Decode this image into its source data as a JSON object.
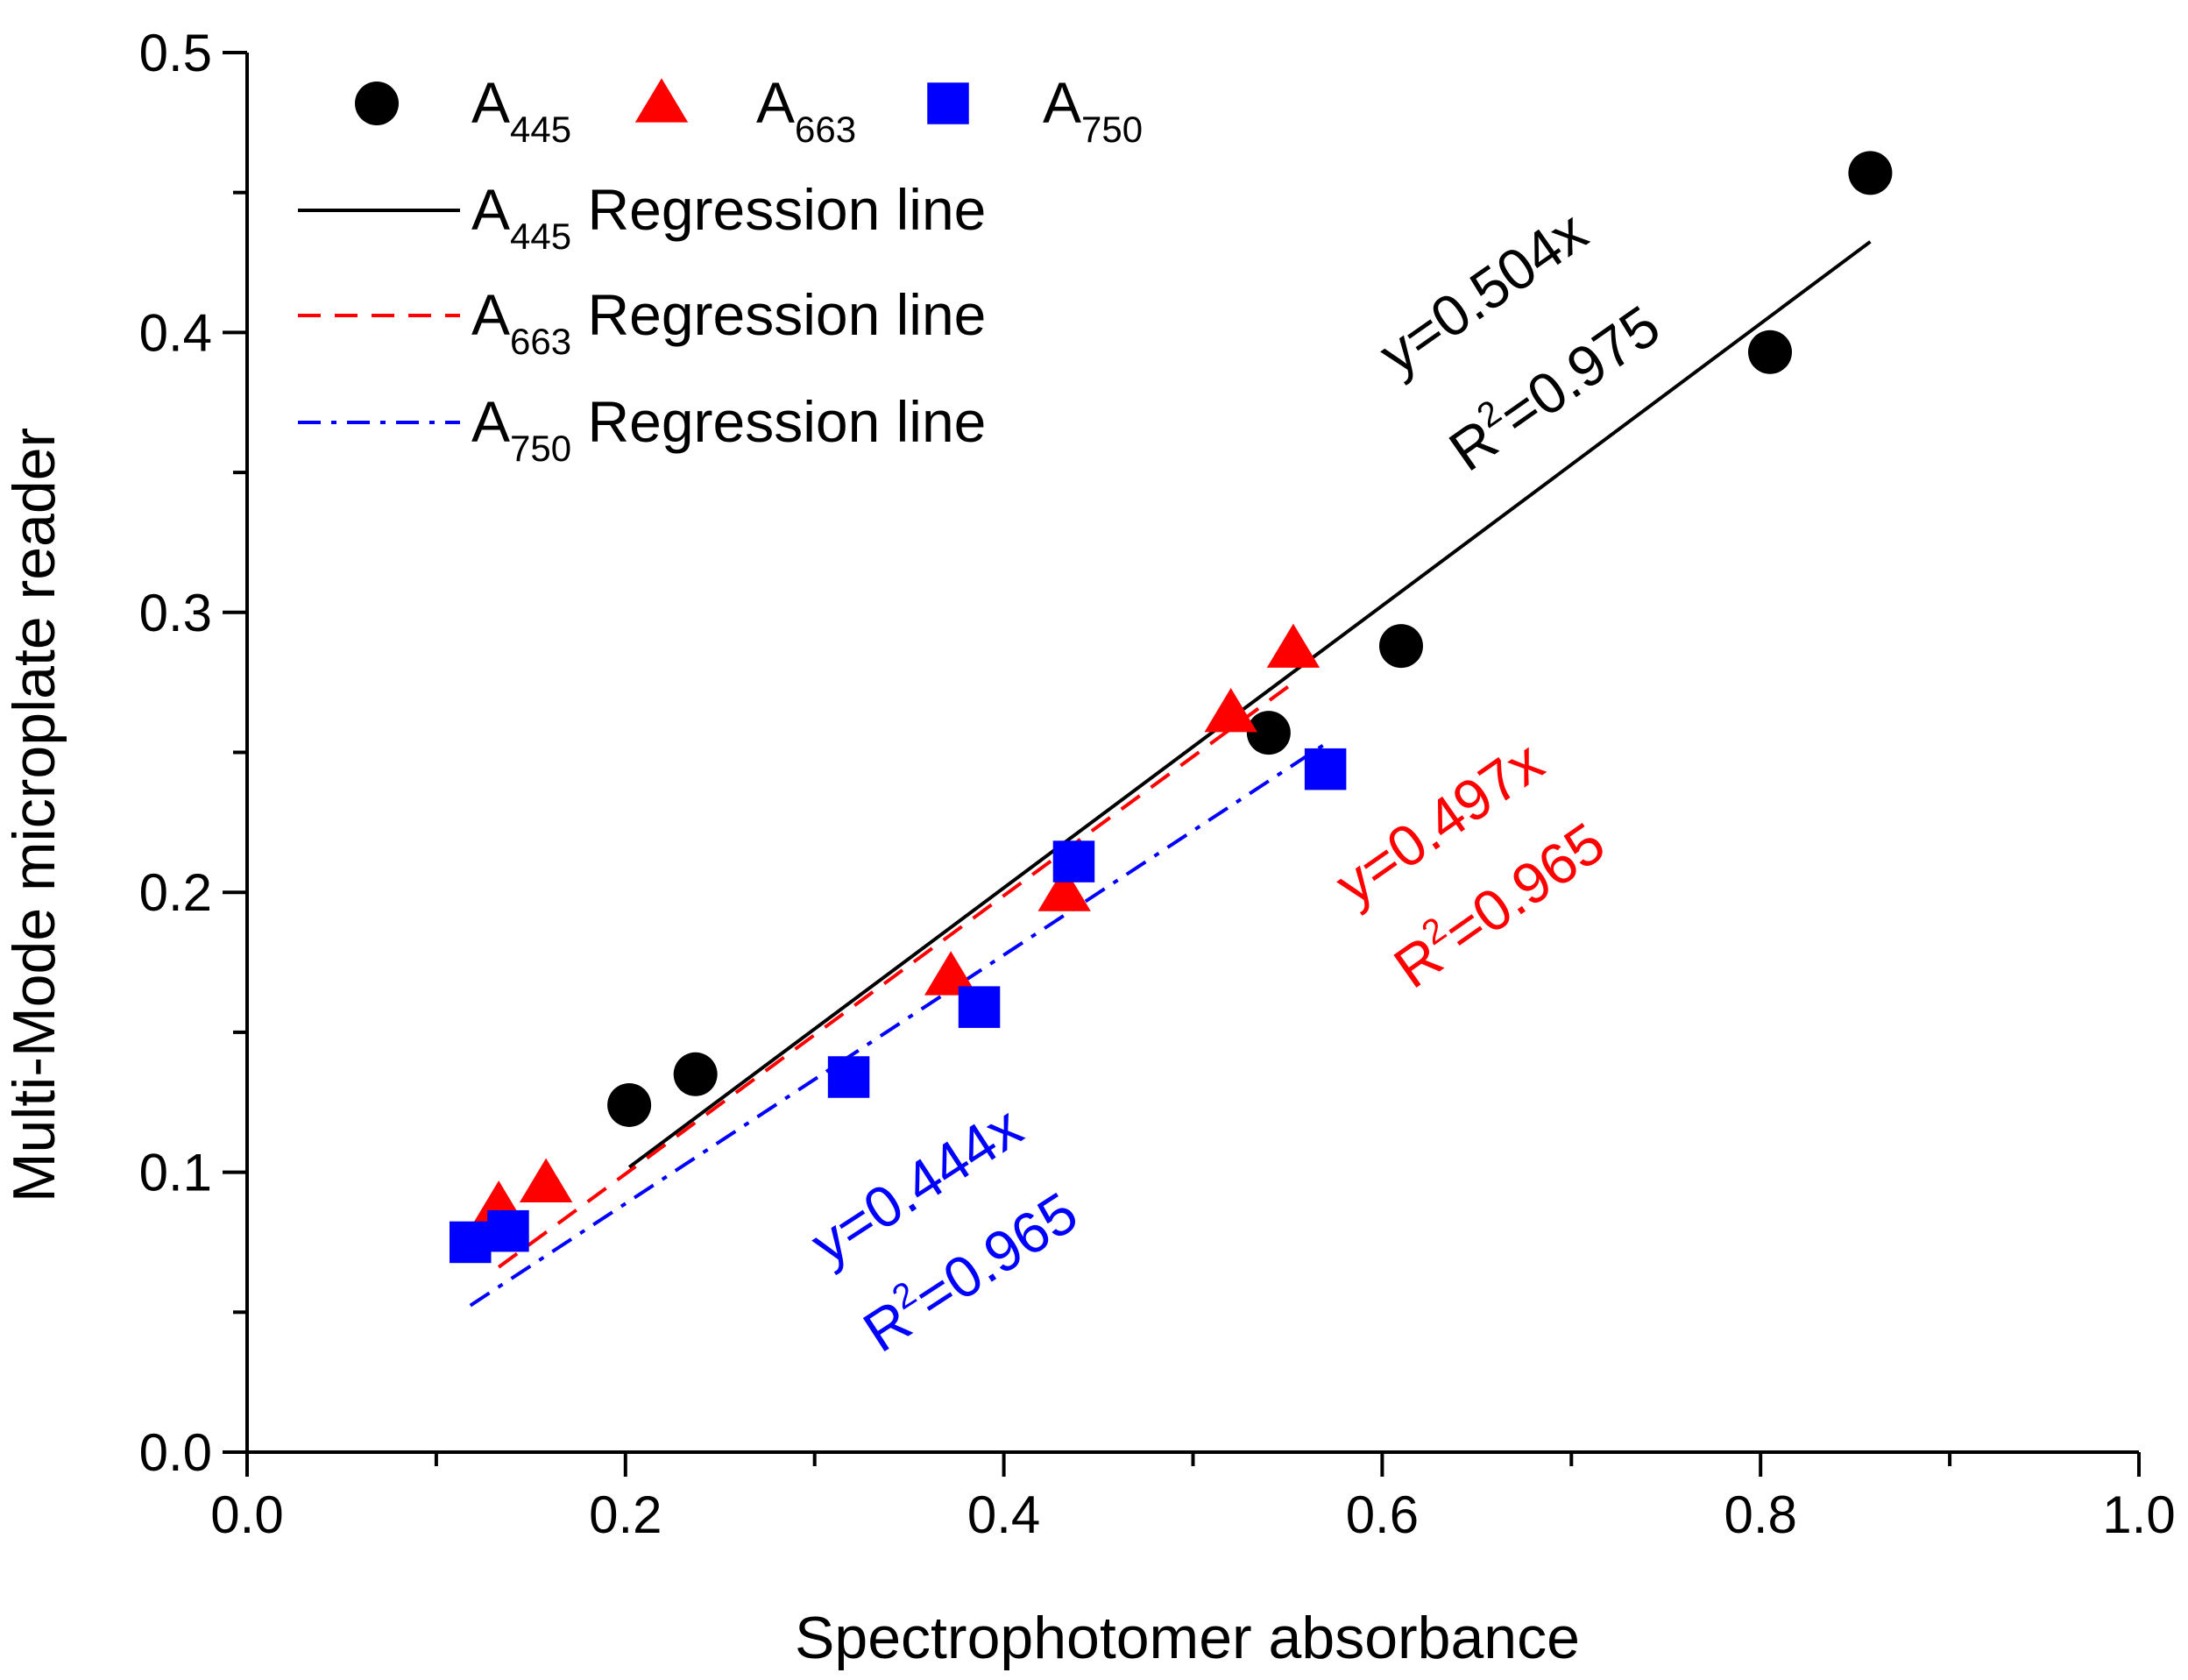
{
  "chart_data": {
    "type": "scatter",
    "xlabel": "Spectrophotomer absorbance",
    "ylabel": "Multi-Mode microplate reader",
    "xlim": [
      0.0,
      1.0
    ],
    "ylim": [
      0.0,
      0.5
    ],
    "x_ticks": [
      "0.0",
      "0.2",
      "0.4",
      "0.6",
      "0.8",
      "1.0"
    ],
    "y_ticks": [
      "0.0",
      "0.1",
      "0.2",
      "0.3",
      "0.4",
      "0.5"
    ],
    "grid": false,
    "legend_position": "top-left",
    "series": [
      {
        "name": "A445",
        "name_base": "A",
        "name_sub": "445",
        "marker": "circle",
        "color": "#000000",
        "points": [
          [
            0.202,
            0.124
          ],
          [
            0.237,
            0.135
          ],
          [
            0.54,
            0.257
          ],
          [
            0.61,
            0.288
          ],
          [
            0.805,
            0.393
          ],
          [
            0.858,
            0.457
          ]
        ]
      },
      {
        "name": "A663",
        "name_base": "A",
        "name_sub": "663",
        "marker": "triangle",
        "color": "#ff0000",
        "points": [
          [
            0.133,
            0.088
          ],
          [
            0.158,
            0.096
          ],
          [
            0.372,
            0.17
          ],
          [
            0.432,
            0.2
          ],
          [
            0.52,
            0.264
          ],
          [
            0.553,
            0.287
          ]
        ]
      },
      {
        "name": "A750",
        "name_base": "A",
        "name_sub": "750",
        "marker": "square",
        "color": "#0000ff",
        "points": [
          [
            0.118,
            0.075
          ],
          [
            0.138,
            0.079
          ],
          [
            0.318,
            0.134
          ],
          [
            0.387,
            0.159
          ],
          [
            0.437,
            0.211
          ],
          [
            0.57,
            0.244
          ]
        ]
      }
    ],
    "regression_lines": [
      {
        "name": "A445 Regression line",
        "name_base": "A",
        "name_sub": "445",
        "name_rest": " Regression line",
        "style": "solid",
        "color": "#000000",
        "slope": 0.504,
        "x_range": [
          0.202,
          0.858
        ],
        "equation": "y=0.504x",
        "r2_prefix": "R",
        "r2_sup": "2",
        "r2_value": "=0.975"
      },
      {
        "name": "A663 Regression line",
        "name_base": "A",
        "name_sub": "663",
        "name_rest": " Regression line",
        "style": "dashed",
        "color": "#ff0000",
        "slope": 0.497,
        "x_range": [
          0.133,
          0.553
        ],
        "equation": "y=0.497x",
        "r2_prefix": "R",
        "r2_sup": "2",
        "r2_value": "=0.965"
      },
      {
        "name": "A750 Regression line",
        "name_base": "A",
        "name_sub": "750",
        "name_rest": " Regression line",
        "style": "dashdot",
        "color": "#0000ff",
        "slope": 0.444,
        "x_range": [
          0.118,
          0.57
        ],
        "equation": "y=0.444x",
        "r2_prefix": "R",
        "r2_sup": "2",
        "r2_value": "=0.965"
      }
    ]
  }
}
